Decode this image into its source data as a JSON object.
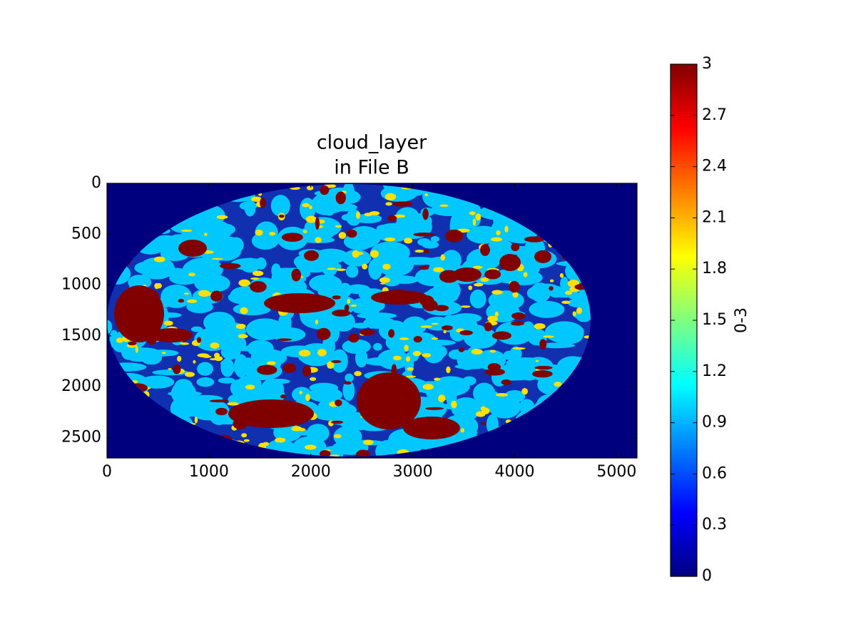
{
  "chart_data": {
    "type": "image",
    "title": [
      "cloud_layer",
      "in File B"
    ],
    "xlim": [
      0,
      5200
    ],
    "xticks": [
      0,
      1000,
      2000,
      3000,
      4000,
      5000
    ],
    "ylim": [
      2700,
      0
    ],
    "yticks": [
      0,
      500,
      1000,
      1500,
      2000,
      2500
    ],
    "colormap": "jet",
    "clim": [
      0,
      3
    ],
    "colorbar_ticks": [
      0,
      0.3,
      0.6,
      0.9,
      1.2,
      1.5,
      1.8,
      2.1,
      2.4,
      2.7,
      3
    ],
    "colorbar_label": "0-3"
  }
}
